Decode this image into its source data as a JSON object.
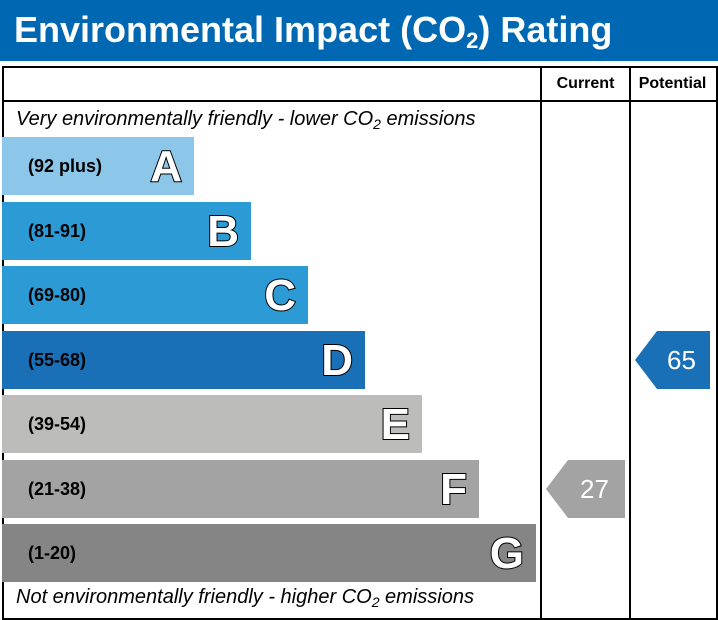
{
  "header": {
    "title_prefix": "Environmental Impact (CO",
    "title_sub": "2",
    "title_suffix": ") Rating"
  },
  "columns": {
    "current": "Current",
    "potential": "Potential"
  },
  "captions": {
    "top_prefix": "Very environmentally friendly - lower CO",
    "top_sub": "2",
    "top_suffix": " emissions",
    "bottom_prefix": "Not environmentally friendly - higher CO",
    "bottom_sub": "2",
    "bottom_suffix": " emissions"
  },
  "chart_data": {
    "type": "bar",
    "bands": [
      {
        "letter": "A",
        "range": "(92 plus)",
        "min": 92,
        "color": "#8cc6e8"
      },
      {
        "letter": "B",
        "range": "(81-91)",
        "min": 81,
        "color": "#2c9ad5"
      },
      {
        "letter": "C",
        "range": "(69-80)",
        "min": 69,
        "color": "#2c9ad5"
      },
      {
        "letter": "D",
        "range": "(55-68)",
        "min": 55,
        "color": "#1a70b6"
      },
      {
        "letter": "E",
        "range": "(39-54)",
        "min": 39,
        "color": "#bcbcbb"
      },
      {
        "letter": "F",
        "range": "(21-38)",
        "min": 21,
        "color": "#a3a3a3"
      },
      {
        "letter": "G",
        "range": "(1-20)",
        "min": 1,
        "color": "#858585"
      }
    ],
    "current": {
      "value": 27,
      "band": "F",
      "color": "#a3a3a3"
    },
    "potential": {
      "value": 65,
      "band": "D",
      "color": "#1a70b6"
    }
  }
}
